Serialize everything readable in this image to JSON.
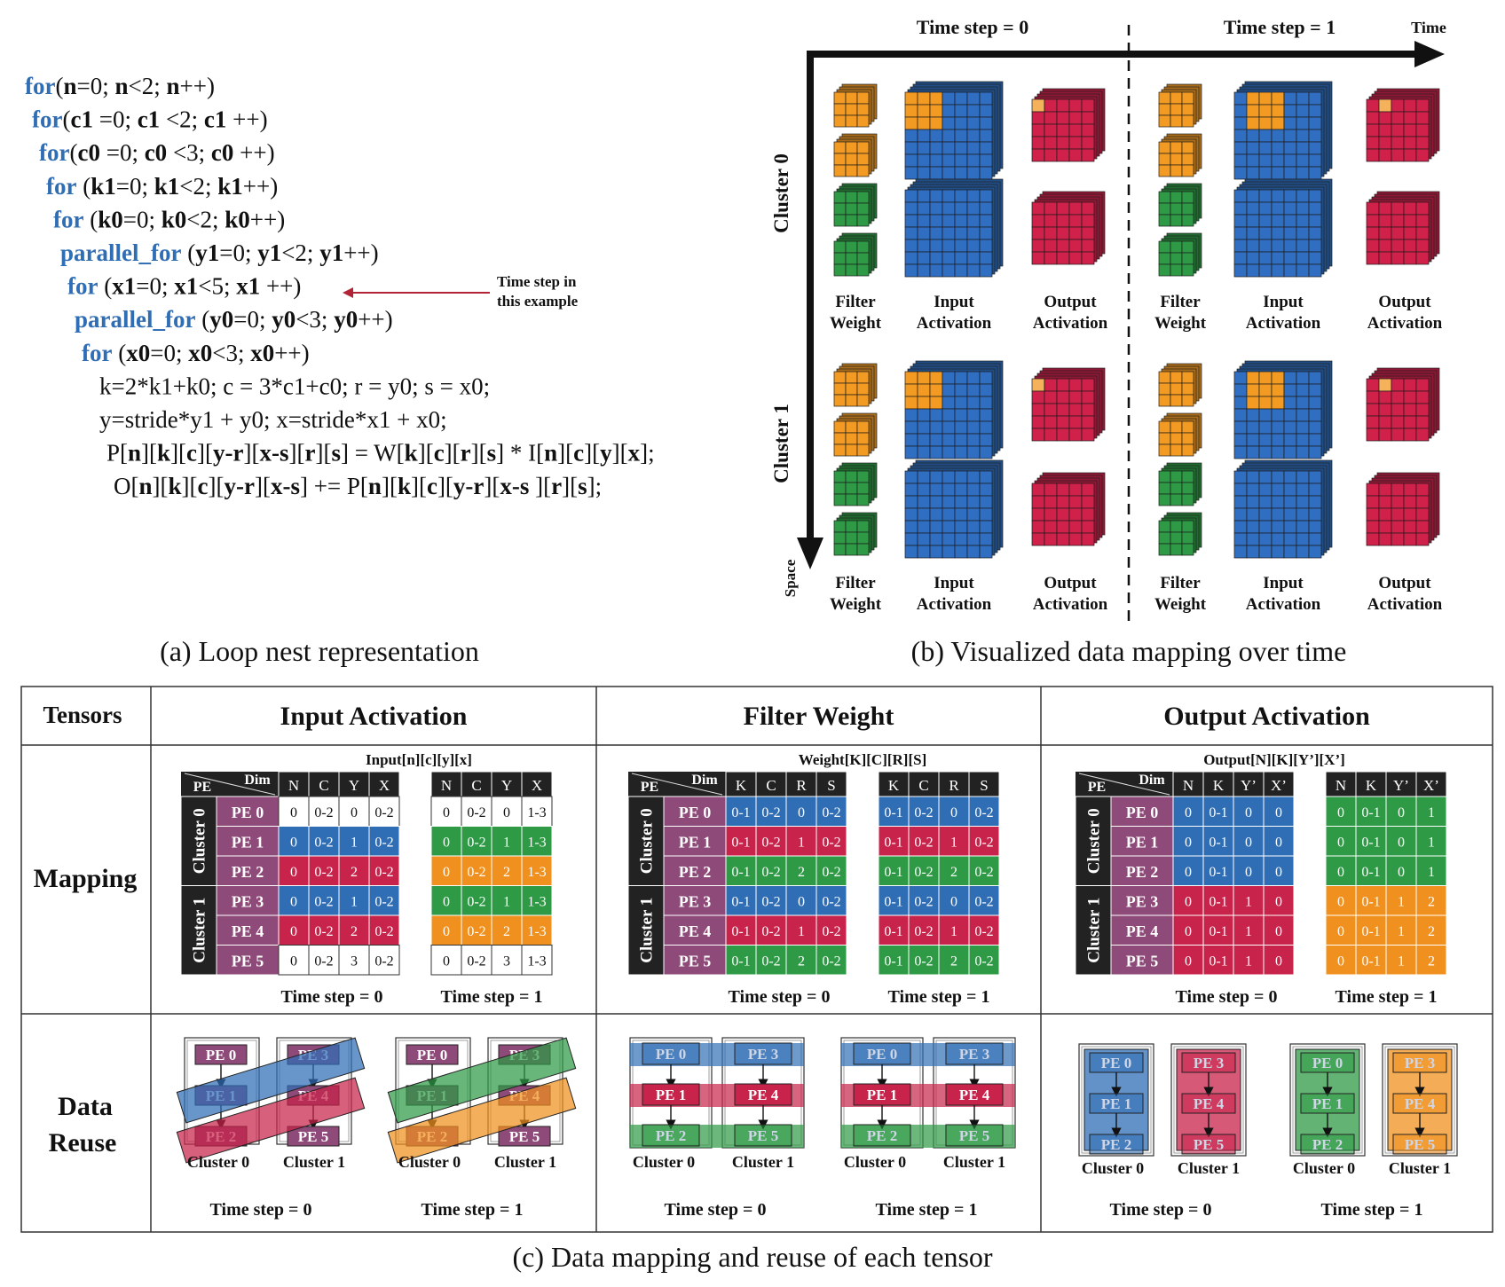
{
  "colors": {
    "blue": "#2f6db5",
    "red": "#c8234a",
    "green": "#2e9a45",
    "orange": "#f0901e",
    "purple": "#8e4a78",
    "black": "#222222",
    "code_blue": "#2f6db5",
    "arrow_red": "#b22435",
    "cube_blue": "#2f6ec0",
    "cube_red": "#d0214a",
    "cube_green": "#2e9a45",
    "cube_orange": "#f39a23"
  },
  "loop_code": {
    "lines": [
      [
        {
          "t": "for",
          "k": 1
        },
        {
          "t": "("
        },
        {
          "t": "n",
          "b": 1
        },
        {
          "t": "=0; "
        },
        {
          "t": "n",
          "b": 1
        },
        {
          "t": "<2; "
        },
        {
          "t": "n",
          "b": 1
        },
        {
          "t": "++)"
        }
      ],
      [
        {
          "t": "for",
          "k": 1
        },
        {
          "t": "("
        },
        {
          "t": "c1",
          "b": 1
        },
        {
          "t": " =0; "
        },
        {
          "t": "c1",
          "b": 1
        },
        {
          "t": " <2; "
        },
        {
          "t": "c1",
          "b": 1
        },
        {
          "t": " ++)"
        }
      ],
      [
        {
          "t": "for",
          "k": 1
        },
        {
          "t": "("
        },
        {
          "t": "c0",
          "b": 1
        },
        {
          "t": " =0; "
        },
        {
          "t": "c0",
          "b": 1
        },
        {
          "t": " <3; "
        },
        {
          "t": "c0",
          "b": 1
        },
        {
          "t": " ++)"
        }
      ],
      [
        {
          "t": "for",
          "k": 1
        },
        {
          "t": " ("
        },
        {
          "t": "k1",
          "b": 1
        },
        {
          "t": "=0; "
        },
        {
          "t": "k1",
          "b": 1
        },
        {
          "t": "<2; "
        },
        {
          "t": "k1",
          "b": 1
        },
        {
          "t": "++)"
        }
      ],
      [
        {
          "t": "for",
          "k": 1
        },
        {
          "t": " ("
        },
        {
          "t": "k0",
          "b": 1
        },
        {
          "t": "=0; "
        },
        {
          "t": "k0",
          "b": 1
        },
        {
          "t": "<2; "
        },
        {
          "t": "k0",
          "b": 1
        },
        {
          "t": "++)"
        }
      ],
      [
        {
          "t": "parallel_for",
          "k": 1
        },
        {
          "t": "  ("
        },
        {
          "t": "y1",
          "b": 1
        },
        {
          "t": "=0; "
        },
        {
          "t": "y1",
          "b": 1
        },
        {
          "t": "<2; "
        },
        {
          "t": "y1",
          "b": 1
        },
        {
          "t": "++)"
        }
      ],
      [
        {
          "t": "for",
          "k": 1
        },
        {
          "t": " ("
        },
        {
          "t": "x1",
          "b": 1
        },
        {
          "t": "=0; "
        },
        {
          "t": "x1",
          "b": 1
        },
        {
          "t": "<5; "
        },
        {
          "t": "x1",
          "b": 1
        },
        {
          "t": " ++)"
        }
      ],
      [
        {
          "t": "parallel_for",
          "k": 1
        },
        {
          "t": "  ("
        },
        {
          "t": "y0",
          "b": 1
        },
        {
          "t": "=0; "
        },
        {
          "t": "y0",
          "b": 1
        },
        {
          "t": "<3; "
        },
        {
          "t": "y0",
          "b": 1
        },
        {
          "t": "++)"
        }
      ],
      [
        {
          "t": "for",
          "k": 1
        },
        {
          "t": " ("
        },
        {
          "t": "x0",
          "b": 1
        },
        {
          "t": "=0; "
        },
        {
          "t": "x0",
          "b": 1
        },
        {
          "t": "<3; "
        },
        {
          "t": "x0",
          "b": 1
        },
        {
          "t": "++)"
        }
      ],
      [
        {
          "t": "k=2*k1+k0; c = 3*c1+c0; r = y0; s = x0;"
        }
      ],
      [
        {
          "t": "y=stride*y1 + y0; x=stride*x1 + x0;"
        }
      ],
      [
        {
          "t": "P["
        },
        {
          "t": "n",
          "b": 1
        },
        {
          "t": "]["
        },
        {
          "t": "k",
          "b": 1
        },
        {
          "t": "]["
        },
        {
          "t": "c",
          "b": 1
        },
        {
          "t": "]["
        },
        {
          "t": "y-r",
          "b": 1
        },
        {
          "t": "]["
        },
        {
          "t": "x-s",
          "b": 1
        },
        {
          "t": "]["
        },
        {
          "t": "r",
          "b": 1
        },
        {
          "t": "]["
        },
        {
          "t": "s",
          "b": 1
        },
        {
          "t": "] = W["
        },
        {
          "t": "k",
          "b": 1
        },
        {
          "t": "]["
        },
        {
          "t": "c",
          "b": 1
        },
        {
          "t": "]["
        },
        {
          "t": "r",
          "b": 1
        },
        {
          "t": "]["
        },
        {
          "t": "s",
          "b": 1
        },
        {
          "t": "] * I["
        },
        {
          "t": "n",
          "b": 1
        },
        {
          "t": "]["
        },
        {
          "t": "c",
          "b": 1
        },
        {
          "t": "]["
        },
        {
          "t": "y",
          "b": 1
        },
        {
          "t": "]["
        },
        {
          "t": "x",
          "b": 1
        },
        {
          "t": "];"
        }
      ],
      [
        {
          "t": "O["
        },
        {
          "t": "n",
          "b": 1
        },
        {
          "t": "]["
        },
        {
          "t": "k",
          "b": 1
        },
        {
          "t": "]["
        },
        {
          "t": "c",
          "b": 1
        },
        {
          "t": "]["
        },
        {
          "t": "y-r",
          "b": 1
        },
        {
          "t": "]["
        },
        {
          "t": "x-s",
          "b": 1
        },
        {
          "t": "] += P["
        },
        {
          "t": "n",
          "b": 1
        },
        {
          "t": "]["
        },
        {
          "t": "k",
          "b": 1
        },
        {
          "t": "]["
        },
        {
          "t": "c",
          "b": 1
        },
        {
          "t": "]["
        },
        {
          "t": "y-r",
          "b": 1
        },
        {
          "t": "]["
        },
        {
          "t": "x-s",
          "b": 1
        },
        {
          "t": " ]["
        },
        {
          "t": "r",
          "b": 1
        },
        {
          "t": "]["
        },
        {
          "t": "s",
          "b": 1
        },
        {
          "t": "];"
        }
      ]
    ],
    "annotation": [
      "Time step in",
      "this example"
    ]
  },
  "captions": {
    "a": "(a) Loop nest representation",
    "b": "(b) Visualized data mapping over time",
    "c": "(c) Data mapping and reuse of each tensor"
  },
  "mapping_viz": {
    "time_steps": [
      "Time step = 0",
      "Time step = 1"
    ],
    "time_label": "Time",
    "space_label": "Space",
    "clusters": [
      "Cluster 0",
      "Cluster 1"
    ],
    "tensor_labels": [
      [
        "Filter",
        "Weight"
      ],
      [
        "Input",
        "Activation"
      ],
      [
        "Output",
        "Activation"
      ]
    ]
  },
  "table": {
    "header": {
      "tensors": "Tensors",
      "cols": [
        "Input Activation",
        "Filter Weight",
        "Output Activation"
      ]
    },
    "row_labels": {
      "mapping": "Mapping",
      "reuse": [
        "Data",
        "Reuse"
      ]
    },
    "pe_label": "PE",
    "dim_label": "Dim",
    "cluster_labels": [
      "Cluster 0",
      "Cluster 1"
    ],
    "pes": [
      "PE 0",
      "PE 1",
      "PE 2",
      "PE 3",
      "PE 4",
      "PE 5"
    ],
    "time_steps": [
      "Time step = 0",
      "Time step = 1"
    ],
    "mapping": [
      {
        "title": "Input[n][c][y][x]",
        "dims": [
          "N",
          "C",
          "Y",
          "X"
        ],
        "t0": [
          [
            "0",
            "0-2",
            "0",
            "0-2"
          ],
          [
            "0",
            "0-2",
            "1",
            "0-2"
          ],
          [
            "0",
            "0-2",
            "2",
            "0-2"
          ],
          [
            "0",
            "0-2",
            "1",
            "0-2"
          ],
          [
            "0",
            "0-2",
            "2",
            "0-2"
          ],
          [
            "0",
            "0-2",
            "3",
            "0-2"
          ]
        ],
        "t0_colors": [
          "white",
          "blue",
          "red",
          "blue",
          "red",
          "white"
        ],
        "t1": [
          [
            "0",
            "0-2",
            "0",
            "1-3"
          ],
          [
            "0",
            "0-2",
            "1",
            "1-3"
          ],
          [
            "0",
            "0-2",
            "2",
            "1-3"
          ],
          [
            "0",
            "0-2",
            "1",
            "1-3"
          ],
          [
            "0",
            "0-2",
            "2",
            "1-3"
          ],
          [
            "0",
            "0-2",
            "3",
            "1-3"
          ]
        ],
        "t1_colors": [
          "white",
          "green",
          "orange",
          "green",
          "orange",
          "white"
        ]
      },
      {
        "title": "Weight[K][C][R][S]",
        "dims": [
          "K",
          "C",
          "R",
          "S"
        ],
        "t0": [
          [
            "0-1",
            "0-2",
            "0",
            "0-2"
          ],
          [
            "0-1",
            "0-2",
            "1",
            "0-2"
          ],
          [
            "0-1",
            "0-2",
            "2",
            "0-2"
          ],
          [
            "0-1",
            "0-2",
            "0",
            "0-2"
          ],
          [
            "0-1",
            "0-2",
            "1",
            "0-2"
          ],
          [
            "0-1",
            "0-2",
            "2",
            "0-2"
          ]
        ],
        "t0_colors": [
          "blue",
          "red",
          "green",
          "blue",
          "red",
          "green"
        ],
        "t1": [
          [
            "0-1",
            "0-2",
            "0",
            "0-2"
          ],
          [
            "0-1",
            "0-2",
            "1",
            "0-2"
          ],
          [
            "0-1",
            "0-2",
            "2",
            "0-2"
          ],
          [
            "0-1",
            "0-2",
            "0",
            "0-2"
          ],
          [
            "0-1",
            "0-2",
            "1",
            "0-2"
          ],
          [
            "0-1",
            "0-2",
            "2",
            "0-2"
          ]
        ],
        "t1_colors": [
          "blue",
          "red",
          "green",
          "blue",
          "red",
          "green"
        ]
      },
      {
        "title": "Output[N][K][Y’][X’]",
        "dims": [
          "N",
          "K",
          "Y’",
          "X’"
        ],
        "t0": [
          [
            "0",
            "0-1",
            "0",
            "0"
          ],
          [
            "0",
            "0-1",
            "0",
            "0"
          ],
          [
            "0",
            "0-1",
            "0",
            "0"
          ],
          [
            "0",
            "0-1",
            "1",
            "0"
          ],
          [
            "0",
            "0-1",
            "1",
            "0"
          ],
          [
            "0",
            "0-1",
            "1",
            "0"
          ]
        ],
        "t0_colors": [
          "blue",
          "blue",
          "blue",
          "red",
          "red",
          "red"
        ],
        "t1": [
          [
            "0",
            "0-1",
            "0",
            "1"
          ],
          [
            "0",
            "0-1",
            "0",
            "1"
          ],
          [
            "0",
            "0-1",
            "0",
            "1"
          ],
          [
            "0",
            "0-1",
            "1",
            "2"
          ],
          [
            "0",
            "0-1",
            "1",
            "2"
          ],
          [
            "0",
            "0-1",
            "1",
            "2"
          ]
        ],
        "t1_colors": [
          "green",
          "green",
          "green",
          "orange",
          "orange",
          "orange"
        ]
      }
    ],
    "reuse": [
      {
        "type": "input",
        "t0_bands": [
          "blue",
          "red"
        ],
        "t1_bands": [
          "green",
          "orange"
        ]
      },
      {
        "type": "weight",
        "t0_bands": [
          "blue",
          "red",
          "green"
        ],
        "t1_bands": [
          "blue",
          "red",
          "green"
        ]
      },
      {
        "type": "output",
        "t0_boxes": [
          "blue",
          "red"
        ],
        "t1_boxes": [
          "green",
          "orange"
        ]
      }
    ]
  }
}
